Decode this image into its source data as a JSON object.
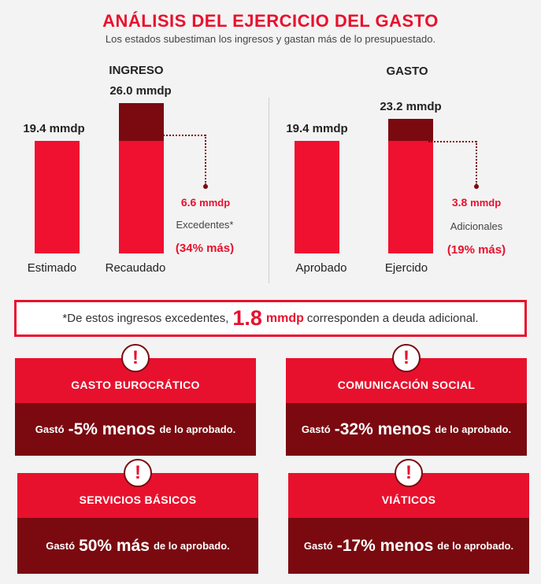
{
  "header": {
    "title": "ANÁLISIS DEL EJERCICIO DEL GASTO",
    "subtitle": "Los estados subestiman los ingresos y gastan más de lo presupuestado."
  },
  "chart_data": [
    {
      "type": "bar",
      "title": "INGRESO",
      "categories": [
        "Estimado",
        "Recaudado"
      ],
      "values": [
        19.4,
        26.0
      ],
      "value_labels": [
        "19.4  mmdp",
        "26.0 mmdp"
      ],
      "unit": "mmdp",
      "annotation": {
        "value": "6.6",
        "unit": "mmdp",
        "label": "Excedentes*",
        "percent": "(34% más)"
      }
    },
    {
      "type": "bar",
      "title": "GASTO",
      "categories": [
        "Aprobado",
        "Ejercido"
      ],
      "values": [
        19.4,
        23.2
      ],
      "value_labels": [
        "19.4 mmdp",
        "23.2 mmdp"
      ],
      "unit": "mmdp",
      "annotation": {
        "value": "3.8",
        "unit": "mmdp",
        "label": "Adicionales",
        "percent": "(19% más)"
      }
    }
  ],
  "note": {
    "before": "*De estos ingresos excedentes,",
    "value": "1.8",
    "unit": "mmdp",
    "after": "corresponden a deuda adicional."
  },
  "cards": [
    {
      "title": "GASTO BUROCRÁTICO",
      "prefix": "Gastó",
      "highlight": "-5% menos",
      "suffix": "de lo aprobado."
    },
    {
      "title": "COMUNICACIÓN SOCIAL",
      "prefix": "Gastó",
      "highlight": "-32% menos",
      "suffix": "de lo aprobado."
    },
    {
      "title": "SERVICIOS BÁSICOS",
      "prefix": "Gastó",
      "highlight": "50% más",
      "suffix": "de lo aprobado."
    },
    {
      "title": "VIÁTICOS",
      "prefix": "Gastó",
      "highlight": "-17% menos",
      "suffix": "de lo aprobado."
    }
  ],
  "colors": {
    "accent": "#e8112d",
    "dark": "#7a0a10",
    "background": "#f3f3f3"
  },
  "icons": {
    "warning": "exclamation-circle-icon"
  }
}
